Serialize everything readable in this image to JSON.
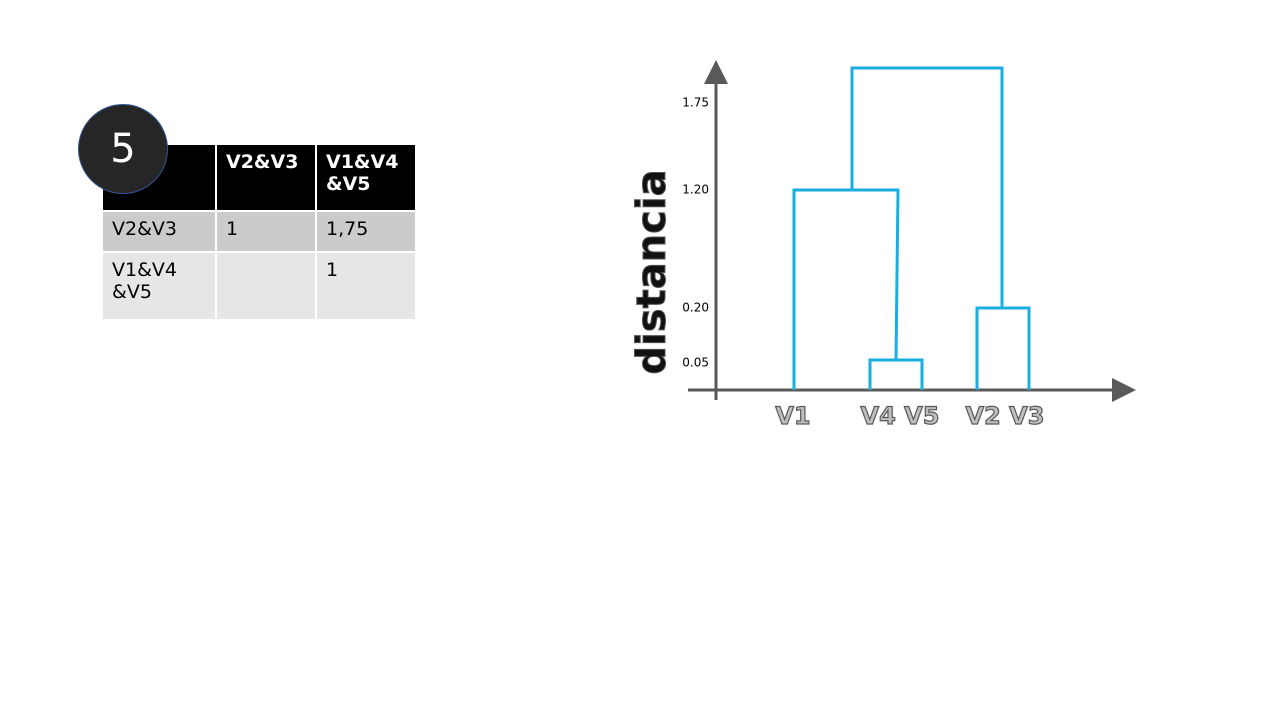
{
  "badge": "5",
  "table": {
    "columns": [
      "V2&V3",
      "V1&V4 &V5"
    ],
    "rows": [
      {
        "label": "V2&V3",
        "cells": [
          "1",
          "1,75"
        ]
      },
      {
        "label": "V1&V4 &V5",
        "cells": [
          null,
          "1"
        ]
      }
    ]
  },
  "dendrogram": {
    "axis_label": "distancia",
    "ticks": [
      "1.75",
      "1.20",
      "0.20",
      "0.05"
    ],
    "leaf_labels": [
      "V1",
      "V4 V5",
      "V2 V3"
    ]
  }
}
